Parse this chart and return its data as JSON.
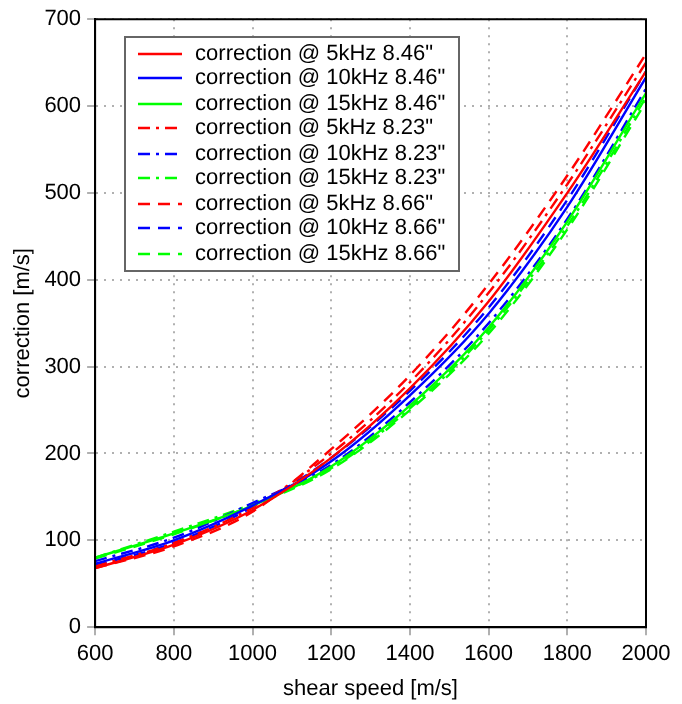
{
  "chart_data": {
    "type": "line",
    "xlabel": "shear speed [m/s]",
    "ylabel": "correction [m/s]",
    "x": [
      600,
      800,
      1000,
      1200,
      1400,
      1600,
      1800,
      2000
    ],
    "xlim": [
      600,
      2000
    ],
    "xticks": [
      600,
      800,
      1000,
      1200,
      1400,
      1600,
      1800,
      2000
    ],
    "ylim": [
      0,
      700
    ],
    "yticks": [
      0,
      100,
      200,
      300,
      400,
      500,
      600,
      700
    ],
    "grid": true,
    "legend": "top left",
    "marker": "none",
    "series": [
      {
        "name": "correction @ 5kHz 8.46\"",
        "color": "#ff0000",
        "line_style": "solid",
        "values": [
          68,
          95,
          135,
          195,
          275,
          375,
          500,
          640
        ]
      },
      {
        "name": "correction @ 10kHz 8.46\"",
        "color": "#0000ff",
        "line_style": "solid",
        "values": [
          73,
          100,
          140,
          191,
          267,
          361,
          484,
          633
        ]
      },
      {
        "name": "correction @ 15kHz 8.46\"",
        "color": "#00ff00",
        "line_style": "solid",
        "values": [
          80,
          108,
          140,
          185,
          255,
          345,
          467,
          615
        ]
      },
      {
        "name": "correction @ 5kHz 8.23\"",
        "color": "#ff0000",
        "line_style": "dashdot",
        "values": [
          70,
          97,
          138,
          200,
          282,
          385,
          510,
          650
        ]
      },
      {
        "name": "correction @ 10kHz 8.23\"",
        "color": "#0000ff",
        "line_style": "dashdot",
        "values": [
          76,
          103,
          143,
          187,
          259,
          350,
          470,
          620
        ]
      },
      {
        "name": "correction @ 15kHz 8.23\"",
        "color": "#00ff00",
        "line_style": "dashdot",
        "values": [
          80,
          110,
          142,
          183,
          252,
          342,
          462,
          610
        ]
      },
      {
        "name": "correction @ 5kHz 8.66\"",
        "color": "#ff0000",
        "line_style": "dashed",
        "values": [
          68,
          93,
          133,
          205,
          290,
          395,
          520,
          660
        ]
      },
      {
        "name": "correction @ 10kHz 8.66\"",
        "color": "#0000ff",
        "line_style": "dashed",
        "values": [
          71,
          97,
          138,
          195,
          272,
          368,
          492,
          640
        ]
      },
      {
        "name": "correction @ 15kHz 8.66\"",
        "color": "#00ff00",
        "line_style": "dashed",
        "values": [
          79,
          107,
          140,
          182,
          250,
          338,
          458,
          605
        ]
      }
    ]
  }
}
